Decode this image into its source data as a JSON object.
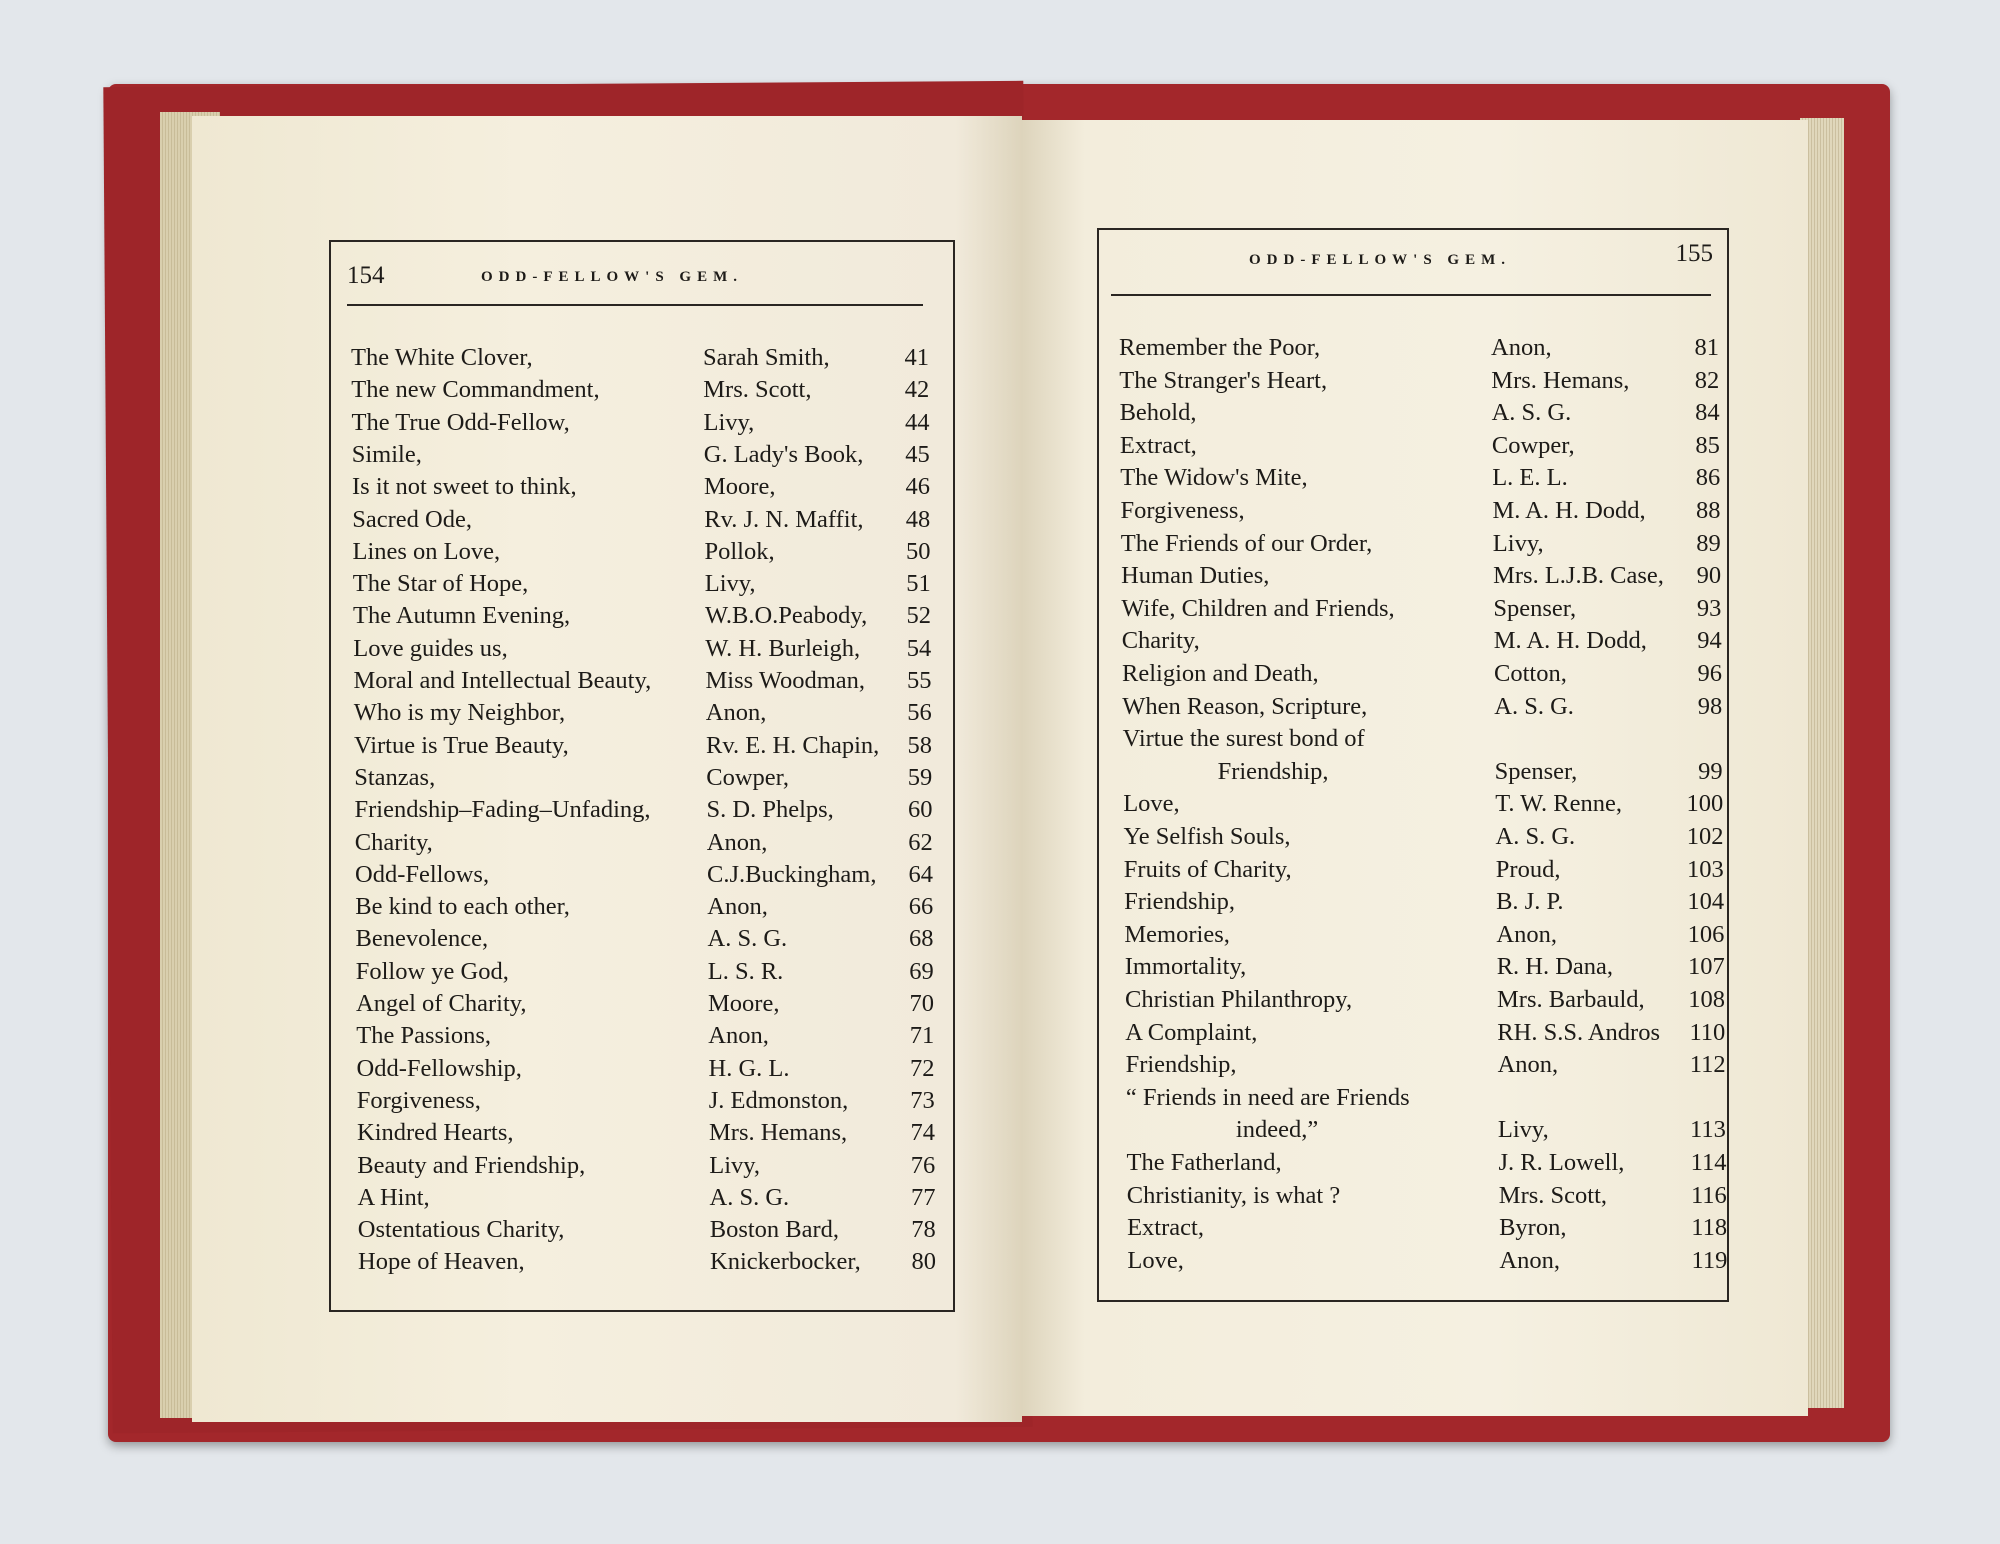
{
  "left_page": {
    "page_number": "154",
    "running_head": "ODD-FELLOW'S GEM.",
    "entries": [
      {
        "title": "The White Clover,",
        "author": "Sarah Smith,",
        "page": "41"
      },
      {
        "title": "The new Commandment,",
        "author": "Mrs. Scott,",
        "page": "42"
      },
      {
        "title": "The True Odd-Fellow,",
        "author": "Livy,",
        "page": "44"
      },
      {
        "title": "Simile,",
        "author": "G. Lady's Book,",
        "page": "45"
      },
      {
        "title": "Is it not sweet to think,",
        "author": "Moore,",
        "page": "46"
      },
      {
        "title": "Sacred Ode,",
        "author": "Rv. J. N. Maffit,",
        "page": "48"
      },
      {
        "title": "Lines on Love,",
        "author": "Pollok,",
        "page": "50"
      },
      {
        "title": "The Star of Hope,",
        "author": "Livy,",
        "page": "51"
      },
      {
        "title": "The Autumn Evening,",
        "author": "W.B.O.Peabody,",
        "page": "52"
      },
      {
        "title": "Love guides us,",
        "author": "W. H. Burleigh,",
        "page": "54"
      },
      {
        "title": "Moral and Intellectual Beauty,",
        "author": "Miss Woodman,",
        "page": "55"
      },
      {
        "title": "Who is my Neighbor,",
        "author": "Anon,",
        "page": "56"
      },
      {
        "title": "Virtue is True Beauty,",
        "author": "Rv. E. H. Chapin,",
        "page": "58"
      },
      {
        "title": "Stanzas,",
        "author": "Cowper,",
        "page": "59"
      },
      {
        "title": "Friendship–Fading–Unfading,",
        "author": "S. D. Phelps,",
        "page": "60"
      },
      {
        "title": "Charity,",
        "author": "Anon,",
        "page": "62"
      },
      {
        "title": "Odd-Fellows,",
        "author": "C.J.Buckingham,",
        "page": "64"
      },
      {
        "title": "Be kind to each other,",
        "author": "Anon,",
        "page": "66"
      },
      {
        "title": "Benevolence,",
        "author": "A. S. G.",
        "page": "68"
      },
      {
        "title": "Follow ye God,",
        "author": "L. S. R.",
        "page": "69"
      },
      {
        "title": "Angel of Charity,",
        "author": "Moore,",
        "page": "70"
      },
      {
        "title": "The Passions,",
        "author": "Anon,",
        "page": "71"
      },
      {
        "title": "Odd-Fellowship,",
        "author": "H. G. L.",
        "page": "72"
      },
      {
        "title": "Forgiveness,",
        "author": "J. Edmonston,",
        "page": "73"
      },
      {
        "title": "Kindred Hearts,",
        "author": "Mrs. Hemans,",
        "page": "74"
      },
      {
        "title": "Beauty and Friendship,",
        "author": "Livy,",
        "page": "76"
      },
      {
        "title": "A Hint,",
        "author": "A. S. G.",
        "page": "77"
      },
      {
        "title": "Ostentatious Charity,",
        "author": "Boston Bard,",
        "page": "78"
      },
      {
        "title": "Hope of Heaven,",
        "author": "Knickerbocker,",
        "page": "80"
      }
    ]
  },
  "right_page": {
    "page_number": "155",
    "running_head": "ODD-FELLOW'S GEM.",
    "entries": [
      {
        "title": "Remember the Poor,",
        "author": "Anon,",
        "page": "81"
      },
      {
        "title": "The Stranger's Heart,",
        "author": "Mrs. Hemans,",
        "page": "82"
      },
      {
        "title": "Behold,",
        "author": "A. S. G.",
        "page": "84"
      },
      {
        "title": "Extract,",
        "author": "Cowper,",
        "page": "85"
      },
      {
        "title": "The Widow's Mite,",
        "author": "L. E. L.",
        "page": "86"
      },
      {
        "title": "Forgiveness,",
        "author": "M. A. H. Dodd,",
        "page": "88"
      },
      {
        "title": "The Friends of our Order,",
        "author": "Livy,",
        "page": "89"
      },
      {
        "title": "Human Duties,",
        "author": "Mrs. L.J.B. Case,",
        "page": "90"
      },
      {
        "title": "Wife, Children and Friends,",
        "author": "Spenser,",
        "page": "93"
      },
      {
        "title": "Charity,",
        "author": "M. A. H. Dodd,",
        "page": "94"
      },
      {
        "title": "Religion and Death,",
        "author": "Cotton,",
        "page": "96"
      },
      {
        "title": "When Reason, Scripture,",
        "author": "A. S. G.",
        "page": "98"
      },
      {
        "title": "Virtue the surest bond of",
        "title_cont": "Friendship,",
        "author": "Spenser,",
        "page": "99"
      },
      {
        "title": "Love,",
        "author": "T. W. Renne,",
        "page": "100"
      },
      {
        "title": "Ye Selfish Souls,",
        "author": "A. S. G.",
        "page": "102"
      },
      {
        "title": "Fruits of Charity,",
        "author": "Proud,",
        "page": "103"
      },
      {
        "title": "Friendship,",
        "author": "B. J. P.",
        "page": "104"
      },
      {
        "title": "Memories,",
        "author": "Anon,",
        "page": "106"
      },
      {
        "title": "Immortality,",
        "author": "R. H. Dana,",
        "page": "107"
      },
      {
        "title": "Christian Philanthropy,",
        "author": "Mrs. Barbauld,",
        "page": "108"
      },
      {
        "title": "A Complaint,",
        "author": "RH. S.S. Andros",
        "page": "110"
      },
      {
        "title": "Friendship,",
        "author": "Anon,",
        "page": "112"
      },
      {
        "title": "“ Friends in need are Friends",
        "title_cont": "indeed,”",
        "author": "Livy,",
        "page": "113"
      },
      {
        "title": "The Fatherland,",
        "author": "J. R. Lowell,",
        "page": "114"
      },
      {
        "title": "Christianity, is what ?",
        "author": "Mrs. Scott,",
        "page": "116"
      },
      {
        "title": "Extract,",
        "author": "Byron,",
        "page": "118"
      },
      {
        "title": "Love,",
        "author": "Anon,",
        "page": "119"
      }
    ]
  },
  "colors": {
    "cover": "#a3272b",
    "paper": "#f2ecd9",
    "ink": "#1d1b18",
    "background": "#e3e7eb"
  }
}
